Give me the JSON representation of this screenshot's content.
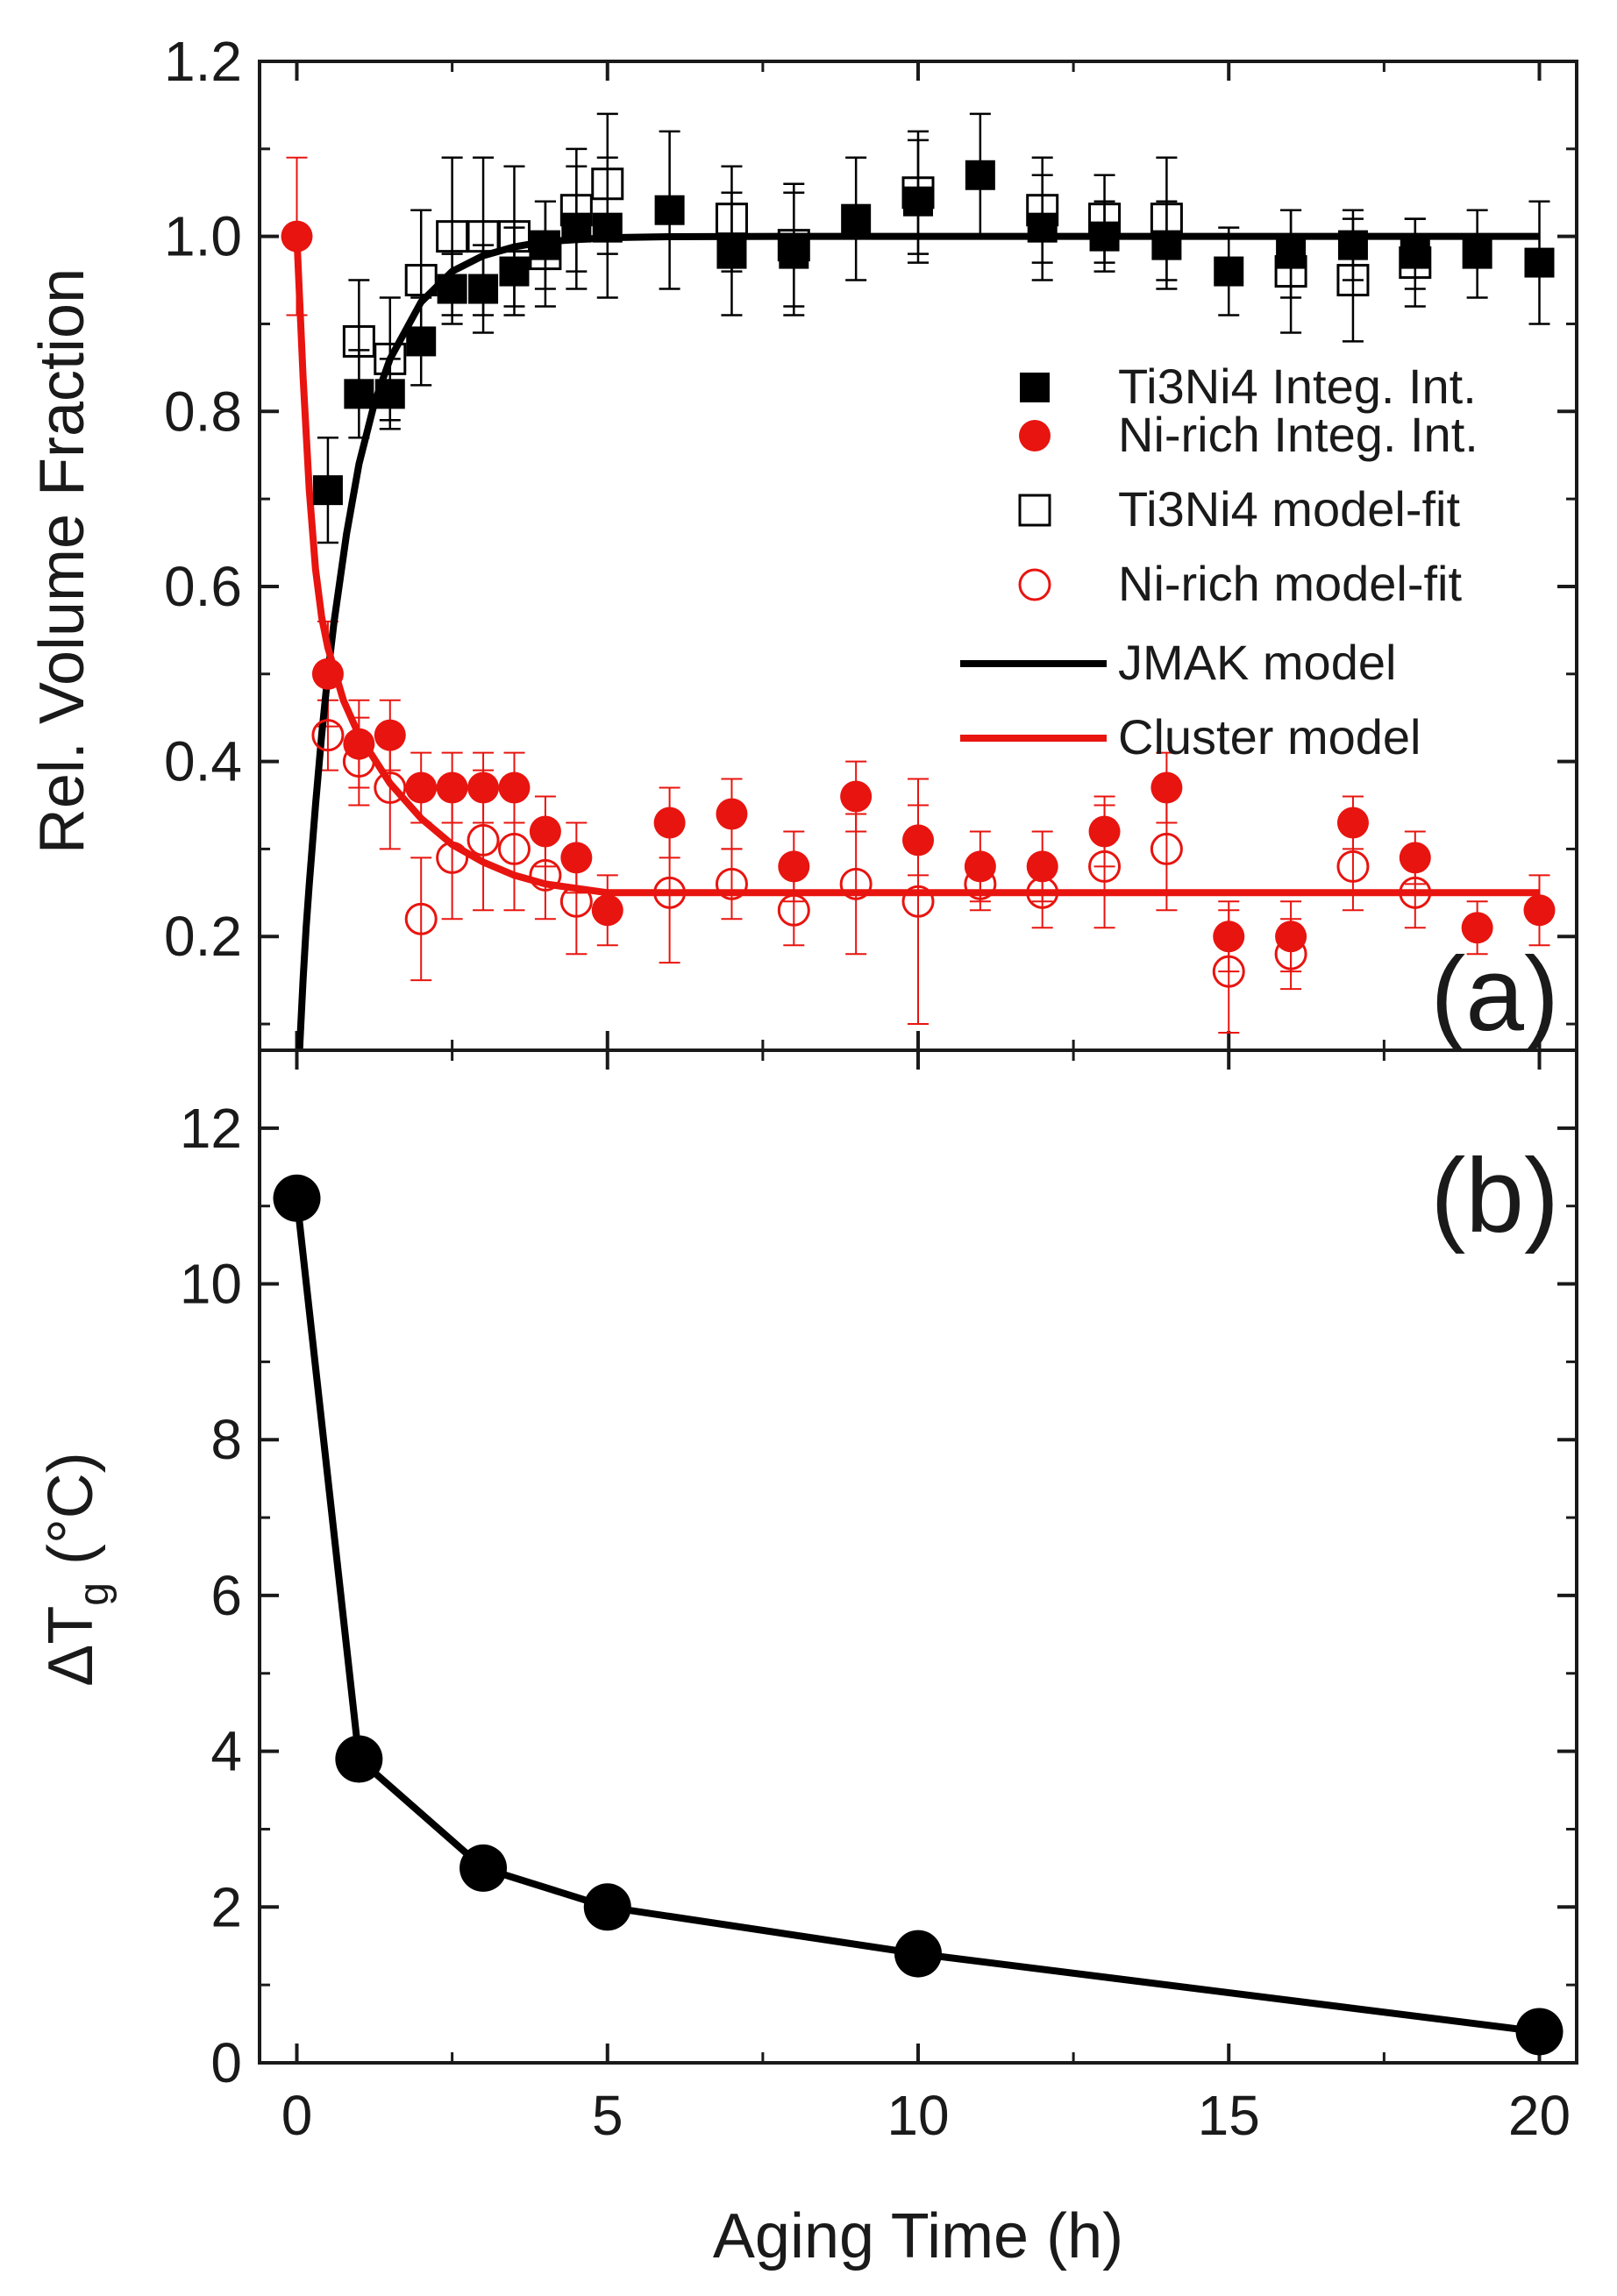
{
  "chart_data": [
    {
      "panel": "a",
      "type": "scatter",
      "panel_label": "(a)",
      "ylabel": "Rel. Volume Fraction",
      "xlabel": "",
      "xlim": [
        -0.6,
        20.6
      ],
      "ylim": [
        0.07,
        1.2
      ],
      "yticks": [
        0.2,
        0.4,
        0.6,
        0.8,
        1.0,
        1.2
      ],
      "ytick_labels": [
        "0.2",
        "0.4",
        "0.6",
        "0.8",
        "1.0",
        "1.2"
      ],
      "xticks": [
        0,
        5,
        10,
        15,
        20
      ],
      "series": [
        {
          "name": "Ti3Ni4 Integ. Int.",
          "marker": "filled-square",
          "color": "#000000",
          "points": [
            {
              "x": 0.5,
              "y": 0.71,
              "err": 0.06
            },
            {
              "x": 1.0,
              "y": 0.82,
              "err": 0.05
            },
            {
              "x": 1.5,
              "y": 0.82,
              "err": 0.04
            },
            {
              "x": 2.0,
              "y": 0.88,
              "err": 0.05
            },
            {
              "x": 2.5,
              "y": 0.94,
              "err": 0.04
            },
            {
              "x": 3.0,
              "y": 0.94,
              "err": 0.05
            },
            {
              "x": 3.5,
              "y": 0.96,
              "err": 0.05
            },
            {
              "x": 4.0,
              "y": 0.99,
              "err": 0.05
            },
            {
              "x": 4.5,
              "y": 1.01,
              "err": 0.07
            },
            {
              "x": 5.0,
              "y": 1.01,
              "err": 0.08
            },
            {
              "x": 6.0,
              "y": 1.03,
              "err": 0.09
            },
            {
              "x": 7.0,
              "y": 0.98,
              "err": 0.07
            },
            {
              "x": 8.0,
              "y": 0.98,
              "err": 0.07
            },
            {
              "x": 9.0,
              "y": 1.02,
              "err": 0.07
            },
            {
              "x": 10.0,
              "y": 1.04,
              "err": 0.07
            },
            {
              "x": 11.0,
              "y": 1.07,
              "err": 0.07
            },
            {
              "x": 12.0,
              "y": 1.01,
              "err": 0.06
            },
            {
              "x": 13.0,
              "y": 1.0,
              "err": 0.04
            },
            {
              "x": 14.0,
              "y": 0.99,
              "err": 0.05
            },
            {
              "x": 15.0,
              "y": 0.96,
              "err": 0.05
            },
            {
              "x": 16.0,
              "y": 0.98,
              "err": 0.05
            },
            {
              "x": 17.0,
              "y": 0.99,
              "err": 0.04
            },
            {
              "x": 18.0,
              "y": 0.98,
              "err": 0.04
            },
            {
              "x": 19.0,
              "y": 0.98,
              "err": 0.05
            },
            {
              "x": 20.0,
              "y": 0.97,
              "err": 0.07
            }
          ]
        },
        {
          "name": "Ni-rich Integ. Int.",
          "marker": "filled-circle",
          "color": "#e8140f",
          "points": [
            {
              "x": 0.0,
              "y": 1.0,
              "err": 0.09
            },
            {
              "x": 0.5,
              "y": 0.5,
              "err": 0.06
            },
            {
              "x": 1.0,
              "y": 0.42,
              "err": 0.05
            },
            {
              "x": 1.5,
              "y": 0.43,
              "err": 0.04
            },
            {
              "x": 2.0,
              "y": 0.37,
              "err": 0.04
            },
            {
              "x": 2.5,
              "y": 0.37,
              "err": 0.04
            },
            {
              "x": 3.0,
              "y": 0.37,
              "err": 0.04
            },
            {
              "x": 3.5,
              "y": 0.37,
              "err": 0.04
            },
            {
              "x": 4.0,
              "y": 0.32,
              "err": 0.04
            },
            {
              "x": 4.5,
              "y": 0.29,
              "err": 0.04
            },
            {
              "x": 5.0,
              "y": 0.23,
              "err": 0.04
            },
            {
              "x": 6.0,
              "y": 0.33,
              "err": 0.04
            },
            {
              "x": 7.0,
              "y": 0.34,
              "err": 0.04
            },
            {
              "x": 8.0,
              "y": 0.28,
              "err": 0.04
            },
            {
              "x": 9.0,
              "y": 0.36,
              "err": 0.04
            },
            {
              "x": 10.0,
              "y": 0.31,
              "err": 0.04
            },
            {
              "x": 11.0,
              "y": 0.28,
              "err": 0.04
            },
            {
              "x": 12.0,
              "y": 0.28,
              "err": 0.04
            },
            {
              "x": 13.0,
              "y": 0.32,
              "err": 0.04
            },
            {
              "x": 14.0,
              "y": 0.37,
              "err": 0.04
            },
            {
              "x": 15.0,
              "y": 0.2,
              "err": 0.04
            },
            {
              "x": 16.0,
              "y": 0.2,
              "err": 0.04
            },
            {
              "x": 17.0,
              "y": 0.33,
              "err": 0.03
            },
            {
              "x": 18.0,
              "y": 0.29,
              "err": 0.03
            },
            {
              "x": 19.0,
              "y": 0.21,
              "err": 0.03
            },
            {
              "x": 20.0,
              "y": 0.23,
              "err": 0.04
            }
          ]
        },
        {
          "name": "Ti3Ni4 model-fit",
          "marker": "open-square",
          "color": "#000000",
          "points": [
            {
              "x": 1.0,
              "y": 0.88,
              "err": 0.07
            },
            {
              "x": 1.5,
              "y": 0.86,
              "err": 0.07
            },
            {
              "x": 2.0,
              "y": 0.95,
              "err": 0.08
            },
            {
              "x": 2.5,
              "y": 1.0,
              "err": 0.09
            },
            {
              "x": 3.0,
              "y": 1.0,
              "err": 0.09
            },
            {
              "x": 3.5,
              "y": 1.0,
              "err": 0.08
            },
            {
              "x": 4.0,
              "y": 0.98,
              "err": 0.06
            },
            {
              "x": 4.5,
              "y": 1.03,
              "err": 0.07
            },
            {
              "x": 5.0,
              "y": 1.06,
              "err": 0.08
            },
            {
              "x": 7.0,
              "y": 1.02,
              "err": 0.06
            },
            {
              "x": 8.0,
              "y": 0.99,
              "err": 0.07
            },
            {
              "x": 10.0,
              "y": 1.05,
              "err": 0.07
            },
            {
              "x": 12.0,
              "y": 1.03,
              "err": 0.06
            },
            {
              "x": 13.0,
              "y": 1.02,
              "err": 0.05
            },
            {
              "x": 14.0,
              "y": 1.02,
              "err": 0.07
            },
            {
              "x": 16.0,
              "y": 0.96,
              "err": 0.07
            },
            {
              "x": 17.0,
              "y": 0.95,
              "err": 0.07
            },
            {
              "x": 18.0,
              "y": 0.97,
              "err": 0.05
            }
          ]
        },
        {
          "name": "Ni-rich model-fit",
          "marker": "open-circle",
          "color": "#e8140f",
          "points": [
            {
              "x": 0.5,
              "y": 0.43,
              "err": 0.04
            },
            {
              "x": 1.0,
              "y": 0.4,
              "err": 0.05
            },
            {
              "x": 1.5,
              "y": 0.37,
              "err": 0.07
            },
            {
              "x": 2.0,
              "y": 0.22,
              "err": 0.07
            },
            {
              "x": 2.5,
              "y": 0.29,
              "err": 0.07
            },
            {
              "x": 3.0,
              "y": 0.31,
              "err": 0.08
            },
            {
              "x": 3.5,
              "y": 0.3,
              "err": 0.07
            },
            {
              "x": 4.0,
              "y": 0.27,
              "err": 0.05
            },
            {
              "x": 4.5,
              "y": 0.24,
              "err": 0.06
            },
            {
              "x": 6.0,
              "y": 0.25,
              "err": 0.08
            },
            {
              "x": 7.0,
              "y": 0.26,
              "err": 0.04
            },
            {
              "x": 8.0,
              "y": 0.23,
              "err": 0.04
            },
            {
              "x": 9.0,
              "y": 0.26,
              "err": 0.08
            },
            {
              "x": 10.0,
              "y": 0.24,
              "err": 0.14
            },
            {
              "x": 11.0,
              "y": 0.26,
              "err": 0.03
            },
            {
              "x": 12.0,
              "y": 0.25,
              "err": 0.04
            },
            {
              "x": 13.0,
              "y": 0.28,
              "err": 0.07
            },
            {
              "x": 14.0,
              "y": 0.3,
              "err": 0.07
            },
            {
              "x": 15.0,
              "y": 0.16,
              "err": 0.07
            },
            {
              "x": 16.0,
              "y": 0.18,
              "err": 0.04
            },
            {
              "x": 17.0,
              "y": 0.28,
              "err": 0.05
            },
            {
              "x": 18.0,
              "y": 0.25,
              "err": 0.04
            }
          ]
        }
      ],
      "lines": [
        {
          "name": "JMAK model",
          "color": "#000000",
          "model": "1 - exp(-(t/0.7)^0.95)",
          "x": [
            0.0,
            0.02,
            0.05,
            0.1,
            0.15,
            0.2,
            0.3,
            0.4,
            0.5,
            0.6,
            0.8,
            1.0,
            1.25,
            1.5,
            2.0,
            2.5,
            3.0,
            3.5,
            4.0,
            5.0,
            6.0,
            8.0,
            10.0,
            12.0,
            15.0,
            20.0
          ],
          "y": [
            0.0,
            0.03,
            0.08,
            0.15,
            0.21,
            0.26,
            0.35,
            0.43,
            0.5,
            0.56,
            0.66,
            0.74,
            0.81,
            0.86,
            0.925,
            0.96,
            0.978,
            0.988,
            0.994,
            0.9985,
            0.9996,
            1.0,
            1.0,
            1.0,
            1.0,
            1.0
          ]
        },
        {
          "name": "Cluster model",
          "color": "#e8140f",
          "x": [
            0.0,
            0.1,
            0.2,
            0.3,
            0.4,
            0.5,
            0.75,
            1.0,
            1.5,
            2.0,
            2.5,
            3.0,
            3.5,
            4.0,
            4.5,
            5.0,
            6.0,
            8.0,
            10.0,
            15.0,
            20.0
          ],
          "y": [
            1.0,
            0.84,
            0.71,
            0.62,
            0.565,
            0.53,
            0.47,
            0.43,
            0.375,
            0.335,
            0.305,
            0.285,
            0.27,
            0.26,
            0.255,
            0.25,
            0.25,
            0.25,
            0.25,
            0.25,
            0.25
          ]
        }
      ],
      "legend": {
        "position": "right",
        "entries": [
          "Ti3Ni4 Integ. Int.",
          "Ni-rich Integ. Int.",
          "Ti3Ni4 model-fit",
          "Ni-rich model-fit",
          "JMAK model",
          "Cluster model"
        ]
      }
    },
    {
      "panel": "b",
      "type": "line",
      "panel_label": "(b)",
      "ylabel_main": "ΔT",
      "ylabel_sub": "g",
      "ylabel_unit": " (°C)",
      "xlabel": "Aging Time (h)",
      "xlim": [
        -0.6,
        20.6
      ],
      "ylim": [
        0,
        13
      ],
      "yticks": [
        0,
        2,
        4,
        6,
        8,
        10,
        12
      ],
      "ytick_labels": [
        "0",
        "2",
        "4",
        "6",
        "8",
        "10",
        "12"
      ],
      "xticks": [
        0,
        5,
        10,
        15,
        20
      ],
      "xtick_labels": [
        "0",
        "5",
        "10",
        "15",
        "20"
      ],
      "series": [
        {
          "name": "ΔTg",
          "marker": "filled-circle",
          "color": "#000000",
          "x": [
            0,
            1,
            3,
            5,
            10,
            20
          ],
          "y": [
            11.1,
            3.9,
            2.5,
            2.0,
            1.4,
            0.4
          ]
        }
      ]
    }
  ],
  "colors": {
    "black": "#000000",
    "red": "#e8140f",
    "axis": "#1a1a1a"
  }
}
